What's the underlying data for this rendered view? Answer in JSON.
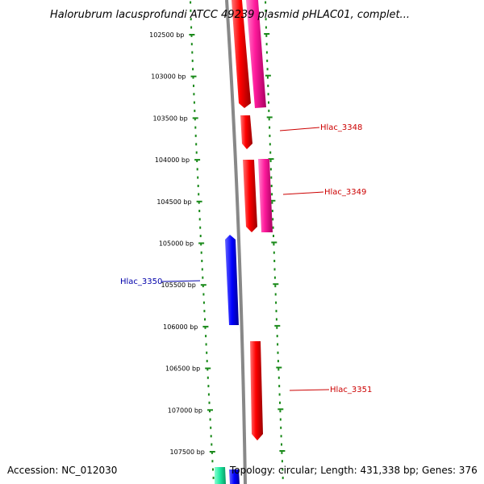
{
  "title": "Halorubrum lacusprofundi ATCC 49239 plasmid pHLAC01, complet...",
  "footer": {
    "accession": "Accession: NC_012030",
    "summary": "Topology: circular; Length: 431,338 bp; Genes: 376"
  },
  "ticks": [
    {
      "bp": 102500,
      "label": "102500 bp"
    },
    {
      "bp": 103000,
      "label": "103000 bp"
    },
    {
      "bp": 103500,
      "label": "103500 bp"
    },
    {
      "bp": 104000,
      "label": "104000 bp"
    },
    {
      "bp": 104500,
      "label": "104500 bp"
    },
    {
      "bp": 105000,
      "label": "105000 bp"
    },
    {
      "bp": 105500,
      "label": "105500 bp"
    },
    {
      "bp": 106000,
      "label": "106000 bp"
    },
    {
      "bp": 106500,
      "label": "106500 bp"
    },
    {
      "bp": 107000,
      "label": "107000 bp"
    },
    {
      "bp": 107500,
      "label": "107500 bp"
    }
  ],
  "gene_labels": [
    {
      "name": "Hlac_3348",
      "color": "#cc0000"
    },
    {
      "name": "Hlac_3349",
      "color": "#cc0000"
    },
    {
      "name": "Hlac_3350",
      "color": "#0000aa"
    },
    {
      "name": "Hlac_3351",
      "color": "#cc0000"
    }
  ],
  "colors": {
    "forward_cds": "#ff0000",
    "reverse_cds": "#0000ff",
    "feature_pink": "#ff1a9c",
    "feature_teal": "#19e8a0",
    "backbone": "#888888",
    "tick_marks": "#1a8a1a"
  }
}
